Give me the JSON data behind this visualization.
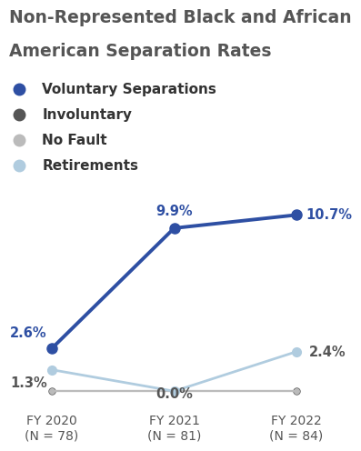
{
  "title_line1": "Non-Represented Black and African",
  "title_line2": "American Separation Rates",
  "title_fontsize": 13.5,
  "title_fontweight": "bold",
  "title_color": "#555555",
  "x_labels": [
    "FY 2020\n(N = 78)",
    "FY 2021\n(N = 81)",
    "FY 2022\n(N = 84)"
  ],
  "x_positions": [
    0,
    1,
    2
  ],
  "series": [
    {
      "name": "Voluntary Separations",
      "values": [
        2.6,
        9.9,
        10.7
      ],
      "color": "#2E4FA3",
      "linewidth": 2.8,
      "markersize": 8,
      "zorder": 4
    },
    {
      "name": "Involuntary",
      "values": [
        0.0,
        0.0,
        0.0
      ],
      "color": "#555555",
      "linewidth": 1.5,
      "markersize": 5,
      "zorder": 2
    },
    {
      "name": "No Fault",
      "values": [
        0.0,
        0.0,
        0.0
      ],
      "color": "#BBBBBB",
      "linewidth": 1.5,
      "markersize": 4,
      "zorder": 2
    },
    {
      "name": "Retirements",
      "values": [
        1.3,
        0.0,
        2.4
      ],
      "color": "#B0CCDF",
      "linewidth": 2.0,
      "markersize": 7,
      "zorder": 3
    }
  ],
  "legend_entries": [
    {
      "name": "Voluntary Separations",
      "color": "#2E4FA3"
    },
    {
      "name": "Involuntary",
      "color": "#555555"
    },
    {
      "name": "No Fault",
      "color": "#BBBBBB"
    },
    {
      "name": "Retirements",
      "color": "#B0CCDF"
    }
  ],
  "vs_labels": [
    "2.6%",
    "9.9%",
    "10.7%"
  ],
  "ret_labels": [
    "1.3%",
    "0.0%",
    "2.4%"
  ],
  "vs_label_color": "#2E4FA3",
  "ret_label_color": "#555555",
  "data_label_fontsize": 10.5,
  "data_label_fontweight": "bold",
  "ylim": [
    -0.8,
    13.0
  ],
  "xlim": [
    -0.35,
    2.35
  ],
  "background_color": "#FFFFFF",
  "xtick_fontsize": 10,
  "xtick_color": "#555555",
  "legend_fontsize": 11,
  "legend_label_color": "#333333"
}
